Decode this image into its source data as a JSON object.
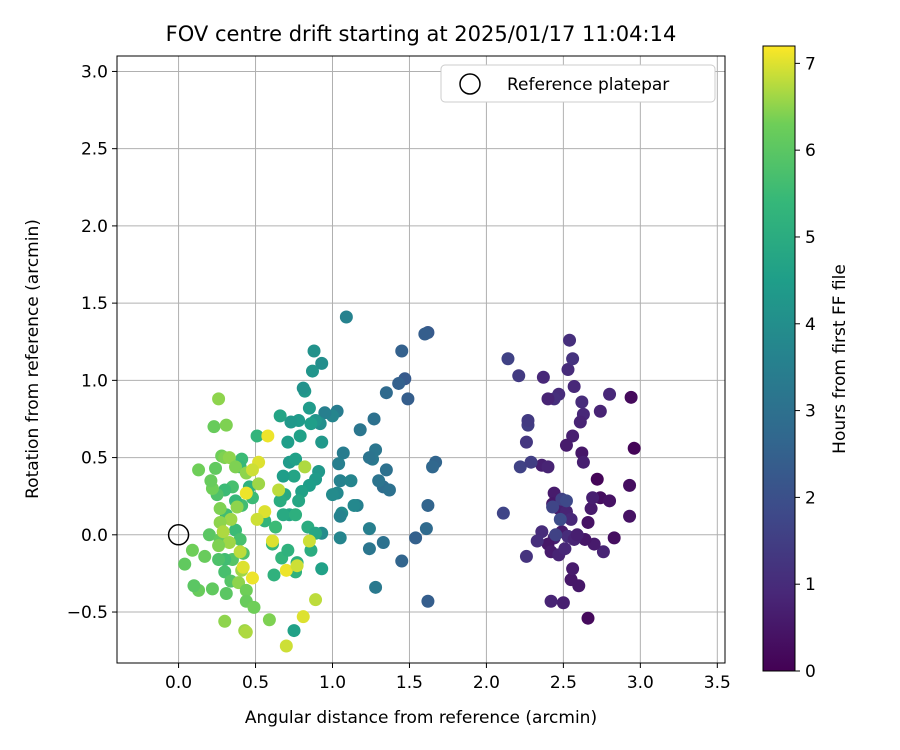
{
  "chart_data": {
    "type": "scatter",
    "title": "FOV centre drift starting at 2025/01/17 11:04:14",
    "xlabel": "Angular distance from reference (arcmin)",
    "ylabel": "Rotation from reference (arcmin)",
    "xlim": [
      -0.4,
      3.55
    ],
    "ylim": [
      -0.83,
      3.1
    ],
    "xticks": [
      "0.0",
      "0.5",
      "1.0",
      "1.5",
      "2.0",
      "2.5",
      "3.0",
      "3.5"
    ],
    "yticks": [
      "−0.5",
      "0.0",
      "0.5",
      "1.0",
      "1.5",
      "2.0",
      "2.5",
      "3.0"
    ],
    "grid": true,
    "legend": {
      "position": "top-right",
      "entries": [
        "Reference platepar"
      ]
    },
    "reference_point": {
      "x": 0.0,
      "y": 0.0,
      "marker": "open circle"
    },
    "colorbar": {
      "label": "Hours from first FF file",
      "range": [
        0,
        7.2
      ],
      "ticks": [
        "0",
        "1",
        "2",
        "3",
        "4",
        "5",
        "6",
        "7"
      ],
      "colormap": "viridis"
    },
    "points": [
      {
        "x": 2.94,
        "y": 0.89,
        "h": 0.2
      },
      {
        "x": 2.96,
        "y": 0.56,
        "h": 0.1
      },
      {
        "x": 2.93,
        "y": 0.32,
        "h": 0.3
      },
      {
        "x": 2.93,
        "y": 0.12,
        "h": 0.4
      },
      {
        "x": 2.72,
        "y": 0.36,
        "h": 0.1
      },
      {
        "x": 2.74,
        "y": 0.24,
        "h": 0.3
      },
      {
        "x": 2.8,
        "y": 0.22,
        "h": 0.4
      },
      {
        "x": 2.83,
        "y": -0.02,
        "h": 0.3
      },
      {
        "x": 2.66,
        "y": -0.54,
        "h": 0.2
      },
      {
        "x": 2.6,
        "y": -0.33,
        "h": 0.5
      },
      {
        "x": 2.55,
        "y": -0.29,
        "h": 0.5
      },
      {
        "x": 2.56,
        "y": -0.22,
        "h": 0.6
      },
      {
        "x": 2.5,
        "y": -0.44,
        "h": 0.7
      },
      {
        "x": 2.42,
        "y": -0.43,
        "h": 0.8
      },
      {
        "x": 2.76,
        "y": -0.11,
        "h": 0.8
      },
      {
        "x": 2.7,
        "y": -0.06,
        "h": 0.6
      },
      {
        "x": 2.64,
        "y": -0.03,
        "h": 0.5
      },
      {
        "x": 2.66,
        "y": 0.08,
        "h": 0.4
      },
      {
        "x": 2.68,
        "y": 0.17,
        "h": 0.6
      },
      {
        "x": 2.69,
        "y": 0.24,
        "h": 0.7
      },
      {
        "x": 2.74,
        "y": 0.8,
        "h": 0.8
      },
      {
        "x": 2.8,
        "y": 0.91,
        "h": 0.9
      },
      {
        "x": 2.62,
        "y": 0.86,
        "h": 1.0
      },
      {
        "x": 2.63,
        "y": 0.78,
        "h": 0.9
      },
      {
        "x": 2.61,
        "y": 0.73,
        "h": 0.8
      },
      {
        "x": 2.56,
        "y": 0.64,
        "h": 0.7
      },
      {
        "x": 2.52,
        "y": 0.58,
        "h": 0.6
      },
      {
        "x": 2.62,
        "y": 0.53,
        "h": 0.5
      },
      {
        "x": 2.63,
        "y": 0.47,
        "h": 0.7
      },
      {
        "x": 2.57,
        "y": 0.96,
        "h": 0.9
      },
      {
        "x": 2.53,
        "y": 1.07,
        "h": 1.0
      },
      {
        "x": 2.56,
        "y": 1.14,
        "h": 1.2
      },
      {
        "x": 2.54,
        "y": 1.26,
        "h": 1.1
      },
      {
        "x": 2.47,
        "y": 0.91,
        "h": 1.0
      },
      {
        "x": 2.44,
        "y": 0.88,
        "h": 1.1
      },
      {
        "x": 2.4,
        "y": 0.88,
        "h": 0.8
      },
      {
        "x": 2.37,
        "y": 1.02,
        "h": 0.9
      },
      {
        "x": 2.36,
        "y": 0.45,
        "h": 0.7
      },
      {
        "x": 2.4,
        "y": 0.44,
        "h": 0.8
      },
      {
        "x": 2.44,
        "y": 0.27,
        "h": 0.6
      },
      {
        "x": 2.43,
        "y": 0.2,
        "h": 0.5
      },
      {
        "x": 2.47,
        "y": 0.17,
        "h": 0.6
      },
      {
        "x": 2.5,
        "y": 0.2,
        "h": 0.7
      },
      {
        "x": 2.52,
        "y": 0.15,
        "h": 0.8
      },
      {
        "x": 2.55,
        "y": 0.1,
        "h": 0.9
      },
      {
        "x": 2.49,
        "y": 0.02,
        "h": 0.6
      },
      {
        "x": 2.44,
        "y": -0.02,
        "h": 0.7
      },
      {
        "x": 2.4,
        "y": -0.06,
        "h": 0.5
      },
      {
        "x": 2.42,
        "y": -0.11,
        "h": 0.6
      },
      {
        "x": 2.47,
        "y": -0.13,
        "h": 0.8
      },
      {
        "x": 2.51,
        "y": -0.09,
        "h": 0.9
      },
      {
        "x": 2.53,
        "y": -0.01,
        "h": 1.0
      },
      {
        "x": 2.57,
        "y": -0.03,
        "h": 0.8
      },
      {
        "x": 2.59,
        "y": 0.0,
        "h": 0.7
      },
      {
        "x": 2.36,
        "y": 0.02,
        "h": 1.0
      },
      {
        "x": 2.33,
        "y": -0.04,
        "h": 1.1
      },
      {
        "x": 2.26,
        "y": -0.14,
        "h": 1.2
      },
      {
        "x": 2.26,
        "y": 0.6,
        "h": 1.3
      },
      {
        "x": 2.27,
        "y": 0.71,
        "h": 1.5
      },
      {
        "x": 2.27,
        "y": 0.74,
        "h": 1.4
      },
      {
        "x": 2.21,
        "y": 1.03,
        "h": 1.4
      },
      {
        "x": 2.14,
        "y": 1.14,
        "h": 1.6
      },
      {
        "x": 2.22,
        "y": 0.44,
        "h": 1.6
      },
      {
        "x": 2.11,
        "y": 0.14,
        "h": 1.7
      },
      {
        "x": 2.29,
        "y": 0.47,
        "h": 1.5
      },
      {
        "x": 2.49,
        "y": 0.23,
        "h": 1.6
      },
      {
        "x": 2.52,
        "y": 0.22,
        "h": 1.8
      },
      {
        "x": 2.43,
        "y": 0.18,
        "h": 1.7
      },
      {
        "x": 2.48,
        "y": 0.1,
        "h": 1.9
      },
      {
        "x": 2.45,
        "y": 0.0,
        "h": 1.6
      },
      {
        "x": 1.62,
        "y": 1.31,
        "h": 2.3
      },
      {
        "x": 1.6,
        "y": 1.3,
        "h": 2.4
      },
      {
        "x": 1.45,
        "y": 1.19,
        "h": 2.5
      },
      {
        "x": 1.47,
        "y": 1.01,
        "h": 2.3
      },
      {
        "x": 1.49,
        "y": 0.88,
        "h": 2.4
      },
      {
        "x": 1.43,
        "y": 0.98,
        "h": 2.5
      },
      {
        "x": 1.35,
        "y": 0.92,
        "h": 2.8
      },
      {
        "x": 1.67,
        "y": 0.47,
        "h": 2.6
      },
      {
        "x": 1.65,
        "y": 0.44,
        "h": 2.7
      },
      {
        "x": 1.62,
        "y": 0.19,
        "h": 2.6
      },
      {
        "x": 1.61,
        "y": 0.04,
        "h": 2.8
      },
      {
        "x": 1.54,
        "y": -0.02,
        "h": 2.5
      },
      {
        "x": 1.45,
        "y": -0.17,
        "h": 2.6
      },
      {
        "x": 1.62,
        "y": -0.43,
        "h": 2.4
      },
      {
        "x": 1.35,
        "y": 0.42,
        "h": 3.0
      },
      {
        "x": 1.33,
        "y": 0.31,
        "h": 2.9
      },
      {
        "x": 1.37,
        "y": 0.29,
        "h": 3.0
      },
      {
        "x": 1.3,
        "y": 0.35,
        "h": 3.1
      },
      {
        "x": 1.28,
        "y": 0.55,
        "h": 3.2
      },
      {
        "x": 1.26,
        "y": 0.49,
        "h": 3.3
      },
      {
        "x": 1.24,
        "y": 0.5,
        "h": 3.1
      },
      {
        "x": 1.27,
        "y": 0.75,
        "h": 3.0
      },
      {
        "x": 1.18,
        "y": 0.68,
        "h": 3.2
      },
      {
        "x": 1.33,
        "y": -0.05,
        "h": 3.0
      },
      {
        "x": 1.24,
        "y": -0.09,
        "h": 3.2
      },
      {
        "x": 1.28,
        "y": -0.34,
        "h": 3.3
      },
      {
        "x": 1.24,
        "y": 0.04,
        "h": 3.5
      },
      {
        "x": 1.09,
        "y": 1.41,
        "h": 3.6
      },
      {
        "x": 1.03,
        "y": 0.8,
        "h": 3.4
      },
      {
        "x": 1.0,
        "y": 0.77,
        "h": 3.7
      },
      {
        "x": 0.95,
        "y": 0.79,
        "h": 3.5
      },
      {
        "x": 1.07,
        "y": 0.53,
        "h": 3.4
      },
      {
        "x": 1.04,
        "y": 0.46,
        "h": 3.5
      },
      {
        "x": 1.05,
        "y": 0.35,
        "h": 3.6
      },
      {
        "x": 1.12,
        "y": 0.35,
        "h": 3.7
      },
      {
        "x": 1.16,
        "y": 0.19,
        "h": 3.5
      },
      {
        "x": 1.14,
        "y": 0.19,
        "h": 3.8
      },
      {
        "x": 1.06,
        "y": 0.14,
        "h": 3.9
      },
      {
        "x": 1.05,
        "y": 0.12,
        "h": 3.6
      },
      {
        "x": 1.03,
        "y": 0.27,
        "h": 3.8
      },
      {
        "x": 1.0,
        "y": 0.26,
        "h": 3.9
      },
      {
        "x": 1.05,
        "y": -0.02,
        "h": 3.7
      },
      {
        "x": 0.93,
        "y": 0.01,
        "h": 3.9
      },
      {
        "x": 0.93,
        "y": 1.11,
        "h": 4.0
      },
      {
        "x": 0.88,
        "y": 1.19,
        "h": 4.1
      },
      {
        "x": 0.87,
        "y": 1.06,
        "h": 4.2
      },
      {
        "x": 0.82,
        "y": 0.93,
        "h": 4.3
      },
      {
        "x": 0.81,
        "y": 0.95,
        "h": 4.1
      },
      {
        "x": 0.92,
        "y": 0.72,
        "h": 4.0
      },
      {
        "x": 0.89,
        "y": 0.74,
        "h": 4.2
      },
      {
        "x": 0.85,
        "y": 0.82,
        "h": 4.4
      },
      {
        "x": 0.93,
        "y": 0.6,
        "h": 4.3
      },
      {
        "x": 0.86,
        "y": 0.72,
        "h": 4.5
      },
      {
        "x": 0.78,
        "y": 0.74,
        "h": 4.4
      },
      {
        "x": 0.73,
        "y": 0.73,
        "h": 4.3
      },
      {
        "x": 0.79,
        "y": 0.64,
        "h": 4.6
      },
      {
        "x": 0.66,
        "y": 0.77,
        "h": 4.7
      },
      {
        "x": 0.71,
        "y": 0.6,
        "h": 4.5
      },
      {
        "x": 0.72,
        "y": 0.47,
        "h": 4.4
      },
      {
        "x": 0.76,
        "y": 0.49,
        "h": 4.6
      },
      {
        "x": 0.91,
        "y": 0.41,
        "h": 4.3
      },
      {
        "x": 0.89,
        "y": 0.36,
        "h": 4.4
      },
      {
        "x": 0.85,
        "y": 0.32,
        "h": 4.5
      },
      {
        "x": 0.8,
        "y": 0.28,
        "h": 4.6
      },
      {
        "x": 0.78,
        "y": 0.22,
        "h": 4.8
      },
      {
        "x": 0.75,
        "y": 0.38,
        "h": 4.7
      },
      {
        "x": 0.68,
        "y": 0.38,
        "h": 4.5
      },
      {
        "x": 0.69,
        "y": 0.26,
        "h": 4.9
      },
      {
        "x": 0.66,
        "y": 0.22,
        "h": 5.0
      },
      {
        "x": 0.72,
        "y": 0.13,
        "h": 4.8
      },
      {
        "x": 0.68,
        "y": 0.13,
        "h": 4.9
      },
      {
        "x": 0.76,
        "y": 0.13,
        "h": 5.1
      },
      {
        "x": 0.84,
        "y": 0.05,
        "h": 5.0
      },
      {
        "x": 0.89,
        "y": 0.01,
        "h": 4.8
      },
      {
        "x": 0.93,
        "y": -0.22,
        "h": 4.6
      },
      {
        "x": 0.86,
        "y": -0.1,
        "h": 5.0
      },
      {
        "x": 0.77,
        "y": -0.18,
        "h": 5.1
      },
      {
        "x": 0.76,
        "y": -0.24,
        "h": 5.2
      },
      {
        "x": 0.75,
        "y": -0.62,
        "h": 4.6
      },
      {
        "x": 0.62,
        "y": -0.26,
        "h": 5.2
      },
      {
        "x": 0.67,
        "y": -0.15,
        "h": 5.3
      },
      {
        "x": 0.71,
        "y": -0.1,
        "h": 5.2
      },
      {
        "x": 0.61,
        "y": -0.06,
        "h": 5.4
      },
      {
        "x": 0.56,
        "y": 0.09,
        "h": 5.3
      },
      {
        "x": 0.63,
        "y": 0.05,
        "h": 5.5
      },
      {
        "x": 0.51,
        "y": 0.64,
        "h": 5.3
      },
      {
        "x": 0.41,
        "y": 0.49,
        "h": 5.5
      },
      {
        "x": 0.4,
        "y": 0.44,
        "h": 5.4
      },
      {
        "x": 0.46,
        "y": 0.31,
        "h": 5.2
      },
      {
        "x": 0.48,
        "y": 0.24,
        "h": 5.5
      },
      {
        "x": 0.41,
        "y": 0.19,
        "h": 5.6
      },
      {
        "x": 0.37,
        "y": 0.22,
        "h": 5.4
      },
      {
        "x": 0.35,
        "y": 0.31,
        "h": 5.7
      },
      {
        "x": 0.3,
        "y": 0.29,
        "h": 5.5
      },
      {
        "x": 0.25,
        "y": 0.26,
        "h": 5.8
      },
      {
        "x": 0.31,
        "y": 0.13,
        "h": 5.6
      },
      {
        "x": 0.37,
        "y": 0.03,
        "h": 5.5
      },
      {
        "x": 0.4,
        "y": -0.03,
        "h": 5.7
      },
      {
        "x": 0.42,
        "y": -0.12,
        "h": 5.8
      },
      {
        "x": 0.35,
        "y": -0.16,
        "h": 5.9
      },
      {
        "x": 0.3,
        "y": -0.16,
        "h": 5.6
      },
      {
        "x": 0.26,
        "y": -0.16,
        "h": 5.8
      },
      {
        "x": 0.3,
        "y": -0.24,
        "h": 5.7
      },
      {
        "x": 0.34,
        "y": -0.3,
        "h": 5.9
      },
      {
        "x": 0.31,
        "y": -0.38,
        "h": 6.0
      },
      {
        "x": 0.22,
        "y": -0.35,
        "h": 6.1
      },
      {
        "x": 0.13,
        "y": -0.36,
        "h": 6.2
      },
      {
        "x": 0.1,
        "y": -0.33,
        "h": 6.0
      },
      {
        "x": 0.04,
        "y": -0.19,
        "h": 6.1
      },
      {
        "x": 0.09,
        "y": -0.1,
        "h": 6.3
      },
      {
        "x": 0.17,
        "y": -0.14,
        "h": 6.2
      },
      {
        "x": 0.2,
        "y": 0.0,
        "h": 6.0
      },
      {
        "x": 0.27,
        "y": -0.03,
        "h": 6.1
      },
      {
        "x": 0.22,
        "y": 0.3,
        "h": 6.3
      },
      {
        "x": 0.21,
        "y": 0.35,
        "h": 6.2
      },
      {
        "x": 0.24,
        "y": 0.43,
        "h": 6.1
      },
      {
        "x": 0.13,
        "y": 0.42,
        "h": 6.3
      },
      {
        "x": 0.23,
        "y": 0.7,
        "h": 6.2
      },
      {
        "x": 0.31,
        "y": 0.71,
        "h": 6.4
      },
      {
        "x": 0.26,
        "y": 0.88,
        "h": 6.5
      },
      {
        "x": 0.28,
        "y": 0.51,
        "h": 6.3
      },
      {
        "x": 0.3,
        "y": 0.5,
        "h": 6.4
      },
      {
        "x": 0.33,
        "y": 0.5,
        "h": 6.5
      },
      {
        "x": 0.37,
        "y": 0.44,
        "h": 6.4
      },
      {
        "x": 0.44,
        "y": 0.4,
        "h": 6.5
      },
      {
        "x": 0.52,
        "y": 0.33,
        "h": 6.6
      },
      {
        "x": 0.38,
        "y": 0.18,
        "h": 6.5
      },
      {
        "x": 0.27,
        "y": 0.17,
        "h": 6.4
      },
      {
        "x": 0.34,
        "y": 0.1,
        "h": 6.6
      },
      {
        "x": 0.27,
        "y": 0.08,
        "h": 6.5
      },
      {
        "x": 0.29,
        "y": 0.02,
        "h": 6.7
      },
      {
        "x": 0.33,
        "y": -0.05,
        "h": 6.6
      },
      {
        "x": 0.26,
        "y": -0.07,
        "h": 6.4
      },
      {
        "x": 0.41,
        "y": -0.23,
        "h": 6.6
      },
      {
        "x": 0.39,
        "y": -0.31,
        "h": 6.5
      },
      {
        "x": 0.44,
        "y": -0.36,
        "h": 6.3
      },
      {
        "x": 0.44,
        "y": -0.43,
        "h": 6.2
      },
      {
        "x": 0.49,
        "y": -0.47,
        "h": 6.3
      },
      {
        "x": 0.3,
        "y": -0.56,
        "h": 6.5
      },
      {
        "x": 0.59,
        "y": -0.55,
        "h": 6.4
      },
      {
        "x": 0.43,
        "y": -0.62,
        "h": 6.6
      },
      {
        "x": 0.44,
        "y": -0.63,
        "h": 6.7
      },
      {
        "x": 0.58,
        "y": 0.64,
        "h": 7.1
      },
      {
        "x": 0.52,
        "y": 0.47,
        "h": 7.0
      },
      {
        "x": 0.48,
        "y": 0.42,
        "h": 6.9
      },
      {
        "x": 0.44,
        "y": 0.27,
        "h": 7.1
      },
      {
        "x": 0.56,
        "y": 0.15,
        "h": 7.0
      },
      {
        "x": 0.51,
        "y": 0.1,
        "h": 6.9
      },
      {
        "x": 0.42,
        "y": -0.21,
        "h": 7.0
      },
      {
        "x": 0.48,
        "y": -0.28,
        "h": 7.1
      },
      {
        "x": 0.4,
        "y": -0.11,
        "h": 6.8
      },
      {
        "x": 0.61,
        "y": -0.04,
        "h": 7.0
      },
      {
        "x": 0.7,
        "y": -0.23,
        "h": 7.1
      },
      {
        "x": 0.77,
        "y": -0.2,
        "h": 6.9
      },
      {
        "x": 0.81,
        "y": -0.53,
        "h": 7.0
      },
      {
        "x": 0.89,
        "y": -0.42,
        "h": 6.8
      },
      {
        "x": 0.7,
        "y": -0.72,
        "h": 6.9
      },
      {
        "x": 0.65,
        "y": 0.29,
        "h": 6.8
      },
      {
        "x": 0.82,
        "y": 0.44,
        "h": 6.7
      },
      {
        "x": 0.85,
        "y": -0.04,
        "h": 6.9
      }
    ]
  }
}
